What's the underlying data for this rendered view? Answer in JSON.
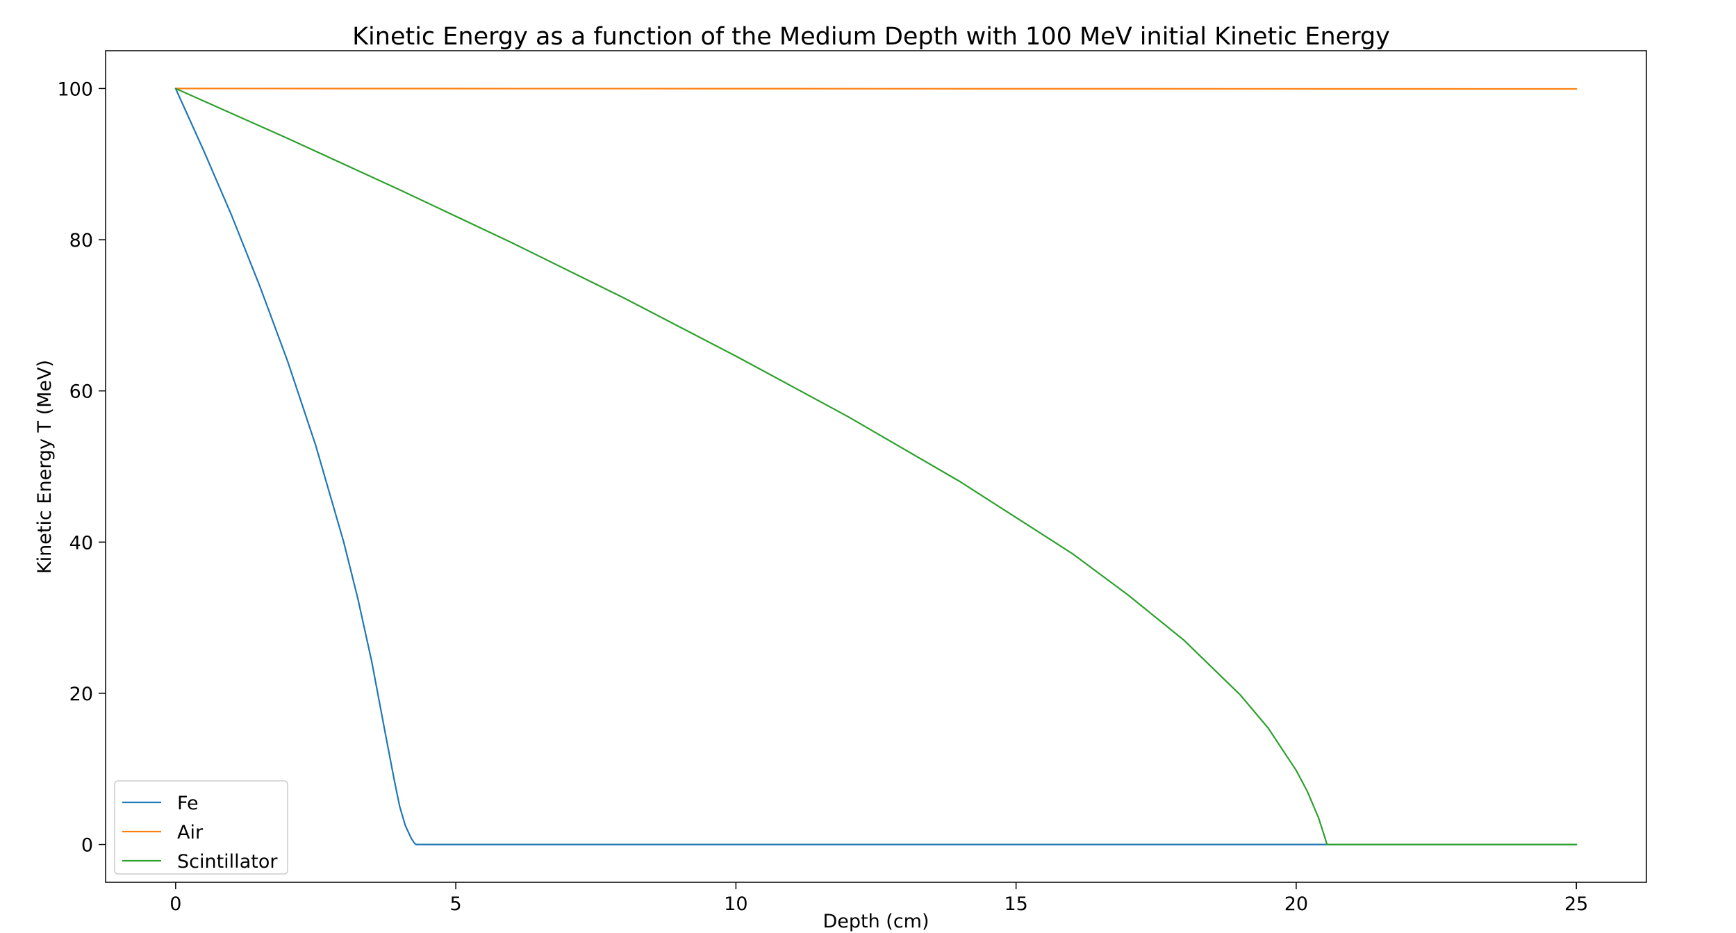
{
  "chart_data": {
    "type": "line",
    "title": "Kinetic Energy as a function of the Medium Depth with 100 MeV initial Kinetic Energy",
    "xlabel": "Depth (cm)",
    "ylabel": "Kinetic Energy T (MeV)",
    "xlim": [
      -1.25,
      26.25
    ],
    "ylim": [
      -5,
      105
    ],
    "xticks": [
      0,
      5,
      10,
      15,
      20,
      25
    ],
    "yticks": [
      0,
      20,
      40,
      60,
      80,
      100
    ],
    "grid": false,
    "legend_position": "lower-left",
    "series": [
      {
        "name": "Fe",
        "color": "#1f77b4",
        "x": [
          0,
          0.5,
          1.0,
          1.5,
          2.0,
          2.5,
          3.0,
          3.25,
          3.5,
          3.75,
          3.9,
          4.0,
          4.1,
          4.2,
          4.25,
          4.28,
          4.3,
          25
        ],
        "y": [
          100,
          91.8,
          83.2,
          73.9,
          63.9,
          52.8,
          40.0,
          32.6,
          24.2,
          14.4,
          8.6,
          5.0,
          2.5,
          0.9,
          0.3,
          0.05,
          0,
          0
        ]
      },
      {
        "name": "Air",
        "color": "#ff7f0e",
        "x": [
          0,
          25
        ],
        "y": [
          100,
          99.95
        ]
      },
      {
        "name": "Scintillator",
        "color": "#2ca02c",
        "x": [
          0,
          2,
          4,
          6,
          8,
          10,
          12,
          14,
          16,
          17,
          18,
          19,
          19.5,
          20,
          20.2,
          20.4,
          20.5,
          20.55,
          25
        ],
        "y": [
          100,
          93.4,
          86.6,
          79.6,
          72.3,
          64.6,
          56.6,
          48.0,
          38.5,
          33.0,
          27.0,
          19.8,
          15.4,
          9.8,
          7.0,
          3.5,
          1.2,
          0,
          0
        ]
      }
    ]
  }
}
